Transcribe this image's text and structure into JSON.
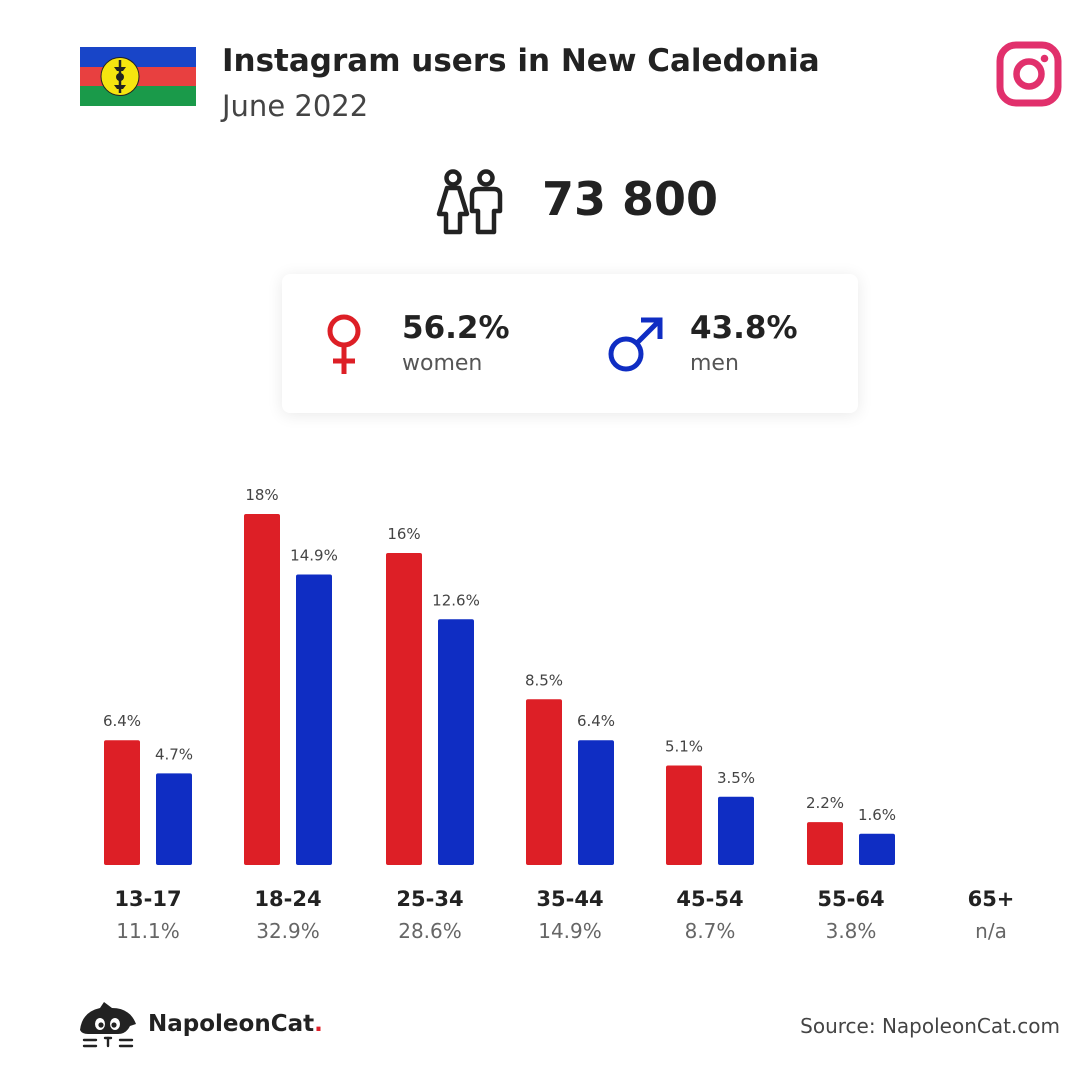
{
  "header": {
    "title": "Instagram users in New Caledonia",
    "subtitle": "June 2022"
  },
  "summary": {
    "total_users": "73 800",
    "women_pct": "56.2%",
    "women_label": "women",
    "men_pct": "43.8%",
    "men_label": "men"
  },
  "colors": {
    "women": "#dd1f26",
    "men": "#0f2dc3",
    "instagram": "#e1306c"
  },
  "icons": {
    "flag": "new-caledonia-flag-icon",
    "brand": "instagram-icon",
    "users": "users-icon",
    "female": "female-symbol-icon",
    "male": "male-symbol-icon",
    "logo": "napoleoncat-logo-icon"
  },
  "chart_data": {
    "type": "bar",
    "categories": [
      "13-17",
      "18-24",
      "25-34",
      "35-44",
      "45-54",
      "55-64",
      "65+"
    ],
    "group_totals": [
      "11.1%",
      "32.9%",
      "28.6%",
      "14.9%",
      "8.7%",
      "3.8%",
      "n/a"
    ],
    "series": [
      {
        "values": [
          6.4,
          18,
          16,
          8.5,
          5.1,
          2.2,
          null
        ],
        "labels": [
          "6.4%",
          "18%",
          "16%",
          "8.5%",
          "5.1%",
          "2.2%",
          ""
        ],
        "color": "#dd1f26"
      },
      {
        "values": [
          4.7,
          14.9,
          12.6,
          6.4,
          3.5,
          1.6,
          null
        ],
        "labels": [
          "4.7%",
          "14.9%",
          "12.6%",
          "6.4%",
          "3.5%",
          "1.6%",
          ""
        ],
        "color": "#0f2dc3"
      }
    ],
    "ylim": [
      0,
      18
    ],
    "grid": false,
    "legend": "none"
  },
  "footer": {
    "brand_name": "NapoleonCat",
    "brand_dot": ".",
    "source": "Source: NapoleonCat.com"
  }
}
